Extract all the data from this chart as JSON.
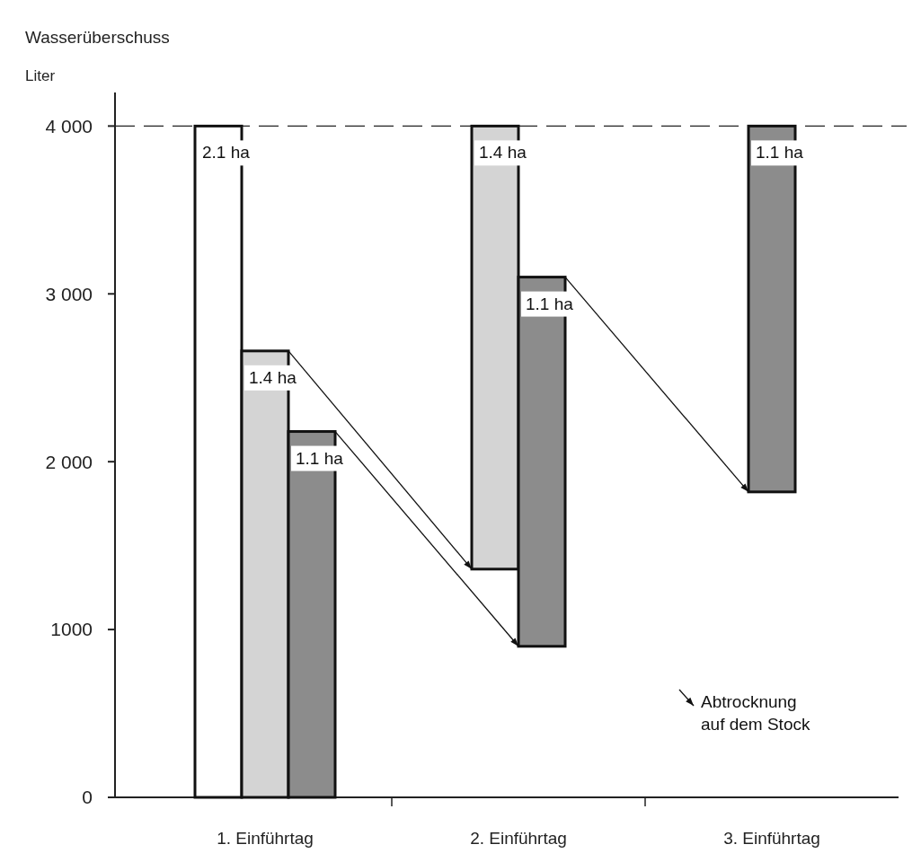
{
  "chart_data": {
    "type": "bar",
    "title": "Wasserüberschuss",
    "ylabel": "Liter",
    "categories": [
      "1. Einführtag",
      "2. Einführtag",
      "3. Einführtag"
    ],
    "series": [
      {
        "name": "2.1 ha",
        "color": "#ffffff",
        "values": [
          4000,
          null,
          null
        ],
        "base": [
          0,
          null,
          null
        ]
      },
      {
        "name": "1.4 ha",
        "color": "#d4d4d4",
        "values": [
          2660,
          2640,
          null
        ],
        "base": [
          0,
          1360,
          null
        ]
      },
      {
        "name": "1.1 ha",
        "color": "#8c8c8c",
        "values": [
          2180,
          2200,
          2180
        ],
        "base": [
          0,
          900,
          1820
        ]
      }
    ],
    "ylim": [
      0,
      4200
    ],
    "yticks": [
      {
        "value": 0,
        "label": "0"
      },
      {
        "value": 1000,
        "label": "1000"
      },
      {
        "value": 2000,
        "label": "2 000"
      },
      {
        "value": 3000,
        "label": "3 000"
      },
      {
        "value": 4000,
        "label": "4 000"
      }
    ],
    "ref_lines": [
      {
        "axis": "y",
        "value": 4000,
        "line_style": "dashed"
      }
    ],
    "annotations": [
      "Abtrocknung\nauf dem Stock"
    ]
  }
}
